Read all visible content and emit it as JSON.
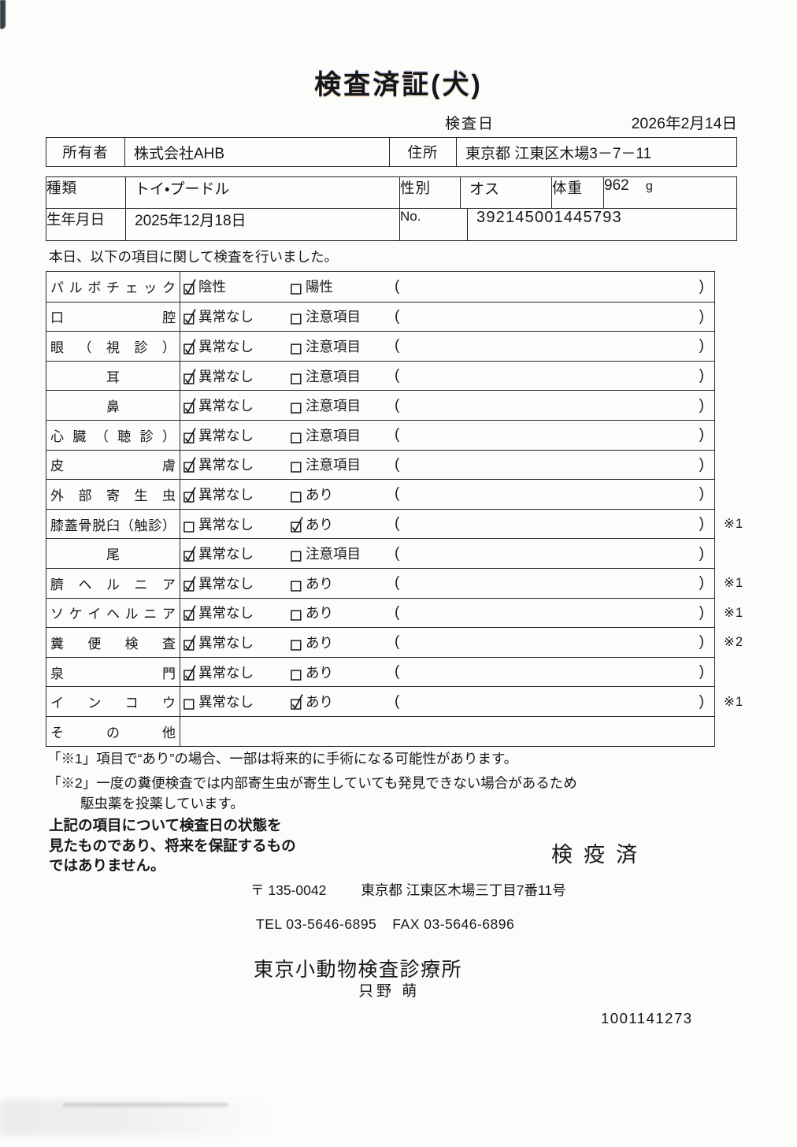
{
  "title": "検査済証(犬)",
  "header": {
    "inspection_date_label": "検査日",
    "inspection_date": "2026年2月14日",
    "owner_label": "所有者",
    "owner": "株式会社AHB",
    "address_label": "住所",
    "address": "東京都 江東区木場3－7－11",
    "breed_label": "種類",
    "breed": "トイ・プードル",
    "sex_label": "性別",
    "sex": "オス",
    "weight_label": "体重",
    "weight": "962",
    "weight_unit": "g",
    "birth_label": "生年月日",
    "birth": "2025年12月18日",
    "no_label": "No.",
    "no": "392145001445793"
  },
  "intro": "本日、以下の項目に関して検査を行いました。",
  "checklist": {
    "paren_open": "(",
    "paren_close": ")",
    "rows": [
      {
        "label": "パルボチェック",
        "align": "justify",
        "opt1": {
          "text": "陰性",
          "checked": true
        },
        "opt2": {
          "text": "陽性",
          "checked": false
        },
        "note": "",
        "empty": false
      },
      {
        "label": "口腔",
        "align": "justify",
        "opt1": {
          "text": "異常なし",
          "checked": true
        },
        "opt2": {
          "text": "注意項目",
          "checked": false
        },
        "note": "",
        "empty": false
      },
      {
        "label": "眼（視診）",
        "align": "justify",
        "opt1": {
          "text": "異常なし",
          "checked": true
        },
        "opt2": {
          "text": "注意項目",
          "checked": false
        },
        "note": "",
        "empty": false
      },
      {
        "label": "耳",
        "align": "center",
        "opt1": {
          "text": "異常なし",
          "checked": true
        },
        "opt2": {
          "text": "注意項目",
          "checked": false
        },
        "note": "",
        "empty": false
      },
      {
        "label": "鼻",
        "align": "center",
        "opt1": {
          "text": "異常なし",
          "checked": true
        },
        "opt2": {
          "text": "注意項目",
          "checked": false
        },
        "note": "",
        "empty": false
      },
      {
        "label": "心臓（聴診）",
        "align": "justify",
        "opt1": {
          "text": "異常なし",
          "checked": true
        },
        "opt2": {
          "text": "注意項目",
          "checked": false
        },
        "note": "",
        "empty": false
      },
      {
        "label": "皮膚",
        "align": "justify",
        "opt1": {
          "text": "異常なし",
          "checked": true
        },
        "opt2": {
          "text": "注意項目",
          "checked": false
        },
        "note": "",
        "empty": false
      },
      {
        "label": "外部寄生虫",
        "align": "justify",
        "opt1": {
          "text": "異常なし",
          "checked": true
        },
        "opt2": {
          "text": "あり",
          "checked": false
        },
        "note": "",
        "empty": false
      },
      {
        "label": "膝蓋骨脱臼（触診）",
        "align": "justify",
        "opt1": {
          "text": "異常なし",
          "checked": false
        },
        "opt2": {
          "text": "あり",
          "checked": true
        },
        "note": "※1",
        "empty": false
      },
      {
        "label": "尾",
        "align": "center",
        "opt1": {
          "text": "異常なし",
          "checked": true
        },
        "opt2": {
          "text": "注意項目",
          "checked": false
        },
        "note": "",
        "empty": false
      },
      {
        "label": "臍ヘルニア",
        "align": "justify",
        "opt1": {
          "text": "異常なし",
          "checked": true
        },
        "opt2": {
          "text": "あり",
          "checked": false
        },
        "note": "※1",
        "empty": false
      },
      {
        "label": "ソケイヘルニア",
        "align": "justify",
        "opt1": {
          "text": "異常なし",
          "checked": true
        },
        "opt2": {
          "text": "あり",
          "checked": false
        },
        "note": "※1",
        "empty": false
      },
      {
        "label": "糞便検査",
        "align": "justify",
        "opt1": {
          "text": "異常なし",
          "checked": true
        },
        "opt2": {
          "text": "あり",
          "checked": false
        },
        "note": "※2",
        "empty": false
      },
      {
        "label": "泉門",
        "align": "justify",
        "opt1": {
          "text": "異常なし",
          "checked": true
        },
        "opt2": {
          "text": "あり",
          "checked": false
        },
        "note": "",
        "empty": false
      },
      {
        "label": "インコウ",
        "align": "justify",
        "opt1": {
          "text": "異常なし",
          "checked": false
        },
        "opt2": {
          "text": "あり",
          "checked": true
        },
        "note": "※1",
        "empty": false
      },
      {
        "label": "その他",
        "align": "justify",
        "opt1": null,
        "opt2": null,
        "note": "",
        "empty": true
      }
    ]
  },
  "footnotes": {
    "fn1": "「※1」項目で“あり”の場合、一部は将来的に手術になる可能性があります。",
    "fn2_line1": "「※2」一度の糞便検査では内部寄生虫が寄生していても発見できない場合があるため",
    "fn2_line2": "駆虫薬を投薬しています。"
  },
  "disclaimer": {
    "line1": "上記の項目について検査日の状態を",
    "line2": "見たものであり、将来を保証するもの",
    "line3": "ではありません。"
  },
  "stamp": "検疫済",
  "clinic": {
    "postal": "〒 135-0042",
    "address": "東京都 江東区木場三丁目7番11号",
    "tel": "TEL 03-5646-6895",
    "fax": "FAX 03-5646-6896",
    "name": "東京小動物検査診療所",
    "vet_name": "只野 萌",
    "doc_number": "1001141273"
  }
}
